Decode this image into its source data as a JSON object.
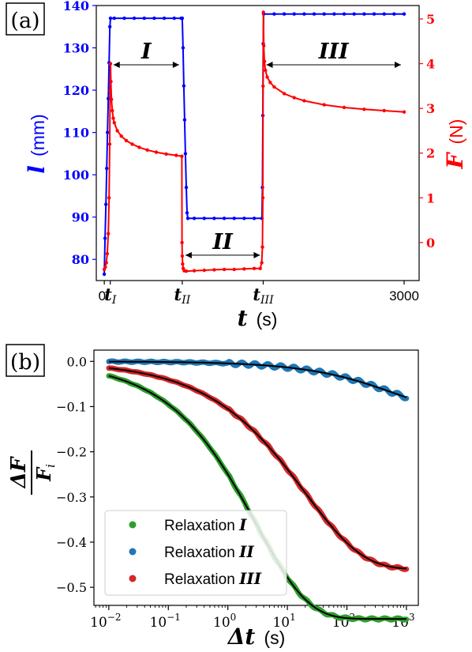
{
  "panel_a": {
    "tag": "(a)",
    "chart_data": {
      "type": "line",
      "xlabel_sym": "t",
      "xlabel_unit": "(s)",
      "ylabel_left_sym": "l",
      "ylabel_left_unit": "(mm)",
      "ylabel_right_sym": "F",
      "ylabel_right_unit": "(N)",
      "xlim": [
        -80,
        3150
      ],
      "x_ticks": [
        {
          "x": 0,
          "label": "0"
        },
        {
          "x": 3000,
          "label": "3000"
        }
      ],
      "x_event_ticks": [
        {
          "x": 60,
          "main": "t",
          "sub": "I"
        },
        {
          "x": 780,
          "main": "t",
          "sub": "II"
        },
        {
          "x": 1590,
          "main": "t",
          "sub": "III"
        }
      ],
      "ylim_left": [
        75,
        140
      ],
      "yticks_left": [
        80,
        90,
        100,
        110,
        120,
        130,
        140
      ],
      "ylim_right": [
        -0.85,
        5.3
      ],
      "yticks_right": [
        0,
        1,
        2,
        3,
        4,
        5
      ],
      "annotations": [
        {
          "label": "I",
          "x_start": 60,
          "x_end": 780,
          "y_left": 126
        },
        {
          "label": "II",
          "x_start": 780,
          "x_end": 1590,
          "y_left": 81
        },
        {
          "label": "III",
          "x_start": 1590,
          "x_end": 3000,
          "y_left": 126
        }
      ],
      "series": [
        {
          "axis": "left",
          "color": "#0000ff",
          "points": [
            [
              0,
              76.5
            ],
            [
              8,
              85
            ],
            [
              16,
              93
            ],
            [
              24,
              101.5
            ],
            [
              32,
              110
            ],
            [
              40,
              118
            ],
            [
              48,
              126.5
            ],
            [
              56,
              135
            ],
            [
              62,
              137
            ],
            [
              100,
              137
            ],
            [
              200,
              137
            ],
            [
              300,
              137
            ],
            [
              400,
              137
            ],
            [
              500,
              137
            ],
            [
              600,
              137
            ],
            [
              700,
              137
            ],
            [
              770,
              137
            ],
            [
              780,
              137
            ],
            [
              788,
              130
            ],
            [
              796,
              121
            ],
            [
              804,
              113
            ],
            [
              812,
              105
            ],
            [
              820,
              97
            ],
            [
              828,
              91
            ],
            [
              836,
              89.7
            ],
            [
              900,
              89.7
            ],
            [
              1000,
              89.7
            ],
            [
              1100,
              89.7
            ],
            [
              1200,
              89.7
            ],
            [
              1300,
              89.7
            ],
            [
              1400,
              89.7
            ],
            [
              1500,
              89.7
            ],
            [
              1578,
              89.7
            ],
            [
              1582,
              97
            ],
            [
              1586,
              114
            ],
            [
              1590,
              131
            ],
            [
              1594,
              138
            ],
            [
              1700,
              138
            ],
            [
              1800,
              138
            ],
            [
              1900,
              138
            ],
            [
              2000,
              138
            ],
            [
              2100,
              138
            ],
            [
              2200,
              138
            ],
            [
              2300,
              138
            ],
            [
              2400,
              138
            ],
            [
              2500,
              138
            ],
            [
              2600,
              138
            ],
            [
              2700,
              138
            ],
            [
              2800,
              138
            ],
            [
              2900,
              138
            ],
            [
              3000,
              138
            ]
          ]
        },
        {
          "axis": "right",
          "color": "#ff0000",
          "points": [
            [
              0,
              -0.6
            ],
            [
              10,
              -0.55
            ],
            [
              20,
              -0.45
            ],
            [
              30,
              -0.25
            ],
            [
              40,
              0.2
            ],
            [
              48,
              1.0
            ],
            [
              54,
              2.2
            ],
            [
              58,
              3.4
            ],
            [
              62,
              4.0
            ],
            [
              66,
              3.6
            ],
            [
              72,
              3.2
            ],
            [
              80,
              2.95
            ],
            [
              90,
              2.78
            ],
            [
              100,
              2.68
            ],
            [
              130,
              2.5
            ],
            [
              170,
              2.38
            ],
            [
              220,
              2.28
            ],
            [
              280,
              2.2
            ],
            [
              350,
              2.13
            ],
            [
              430,
              2.07
            ],
            [
              520,
              2.02
            ],
            [
              620,
              1.98
            ],
            [
              720,
              1.95
            ],
            [
              776,
              1.93
            ],
            [
              778,
              0.0
            ],
            [
              780,
              -0.3
            ],
            [
              784,
              -0.48
            ],
            [
              790,
              -0.58
            ],
            [
              800,
              -0.63
            ],
            [
              820,
              -0.64
            ],
            [
              900,
              -0.63
            ],
            [
              1000,
              -0.62
            ],
            [
              1100,
              -0.61
            ],
            [
              1200,
              -0.6
            ],
            [
              1300,
              -0.6
            ],
            [
              1400,
              -0.59
            ],
            [
              1500,
              -0.58
            ],
            [
              1560,
              -0.58
            ],
            [
              1575,
              -0.45
            ],
            [
              1582,
              -0.1
            ],
            [
              1586,
              1.0
            ],
            [
              1589,
              3.5
            ],
            [
              1592,
              5.15
            ],
            [
              1596,
              4.4
            ],
            [
              1602,
              4.05
            ],
            [
              1612,
              3.85
            ],
            [
              1630,
              3.7
            ],
            [
              1660,
              3.58
            ],
            [
              1700,
              3.48
            ],
            [
              1800,
              3.33
            ],
            [
              1900,
              3.24
            ],
            [
              2000,
              3.17
            ],
            [
              2200,
              3.08
            ],
            [
              2400,
              3.02
            ],
            [
              2600,
              2.98
            ],
            [
              2800,
              2.95
            ],
            [
              3000,
              2.92
            ]
          ]
        }
      ]
    }
  },
  "panel_b": {
    "tag": "(b)",
    "chart_data": {
      "type": "scatter",
      "x_scale": "log",
      "xlabel_sym": "Δt",
      "xlabel_unit": "(s)",
      "ylabel_num": "ΔF",
      "ylabel_den_main": "F",
      "ylabel_den_sub": "i",
      "xlim_log10": [
        -2.25,
        3.2
      ],
      "xtick_exponents": [
        -2,
        -1,
        0,
        1,
        2,
        3
      ],
      "xtick_base": "10",
      "ylim": [
        -0.54,
        0.025
      ],
      "yticks": [
        0.0,
        -0.1,
        -0.2,
        -0.3,
        -0.4,
        -0.5
      ],
      "ytick_labels": [
        "0.0",
        "−0.1",
        "−0.2",
        "−0.3",
        "−0.4",
        "−0.5"
      ],
      "legend_position": "lower-left",
      "series": [
        {
          "name_prefix": "Relaxation",
          "name_sym": "I",
          "color": "#2ca02c",
          "span": 0.57,
          "tau": 3.0,
          "beta": 0.5
        },
        {
          "name_prefix": "Relaxation",
          "name_sym": "II",
          "color": "#1f77b4",
          "span": 0.11,
          "tau": 600,
          "beta": 0.5
        },
        {
          "name_prefix": "Relaxation",
          "name_sym": "III",
          "color": "#d62728",
          "span": 0.46,
          "tau": 20,
          "beta": 0.45
        }
      ],
      "fit_color": "#000000"
    }
  }
}
